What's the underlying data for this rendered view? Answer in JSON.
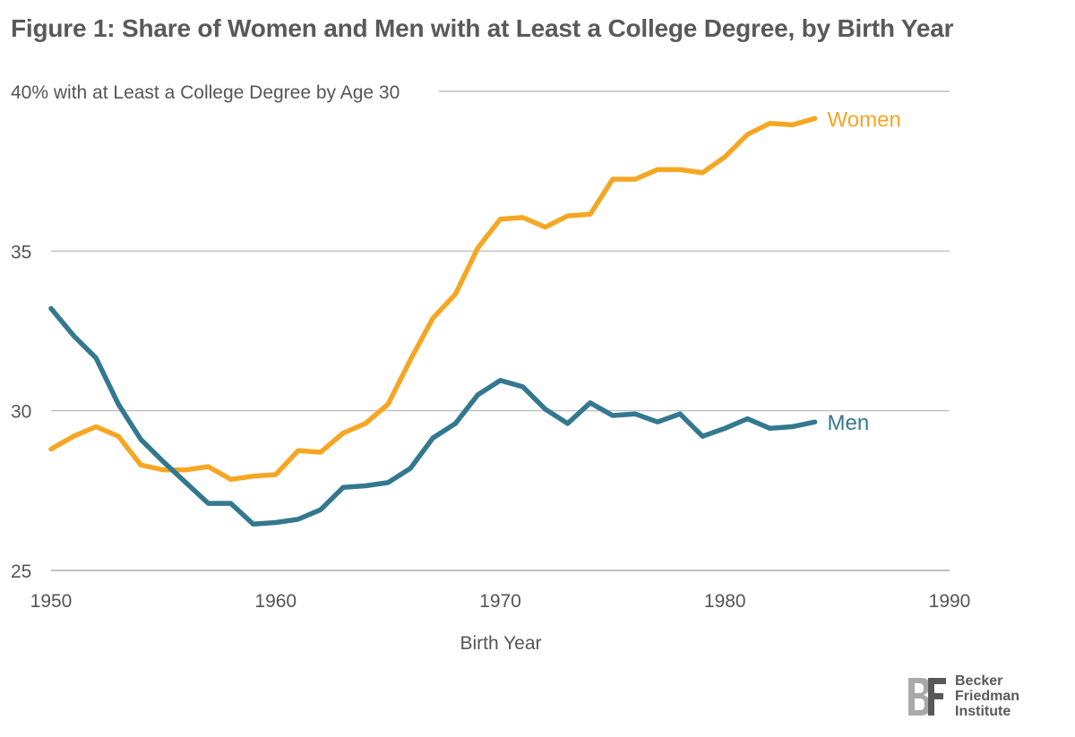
{
  "title": "Figure 1: Share of Women and Men with at Least a College Degree, by Birth Year",
  "logo": {
    "line1": "Becker",
    "line2": "Friedman",
    "line3": "Institute",
    "mark": "BF"
  },
  "chart_data": {
    "type": "line",
    "title": "Figure 1: Share of Women and Men with at Least a College Degree, by Birth Year",
    "xlabel": "Birth Year",
    "ylabel": "40% with at Least a College Degree by Age 30",
    "xlim": [
      1950,
      1990
    ],
    "ylim": [
      25,
      40
    ],
    "x_ticks": [
      1950,
      1960,
      1970,
      1980,
      1990
    ],
    "y_ticks": [
      25,
      30,
      35,
      40
    ],
    "y_tick_labels": [
      "25",
      "30",
      "35",
      ""
    ],
    "grid": "horizontal",
    "x": [
      1950,
      1951,
      1952,
      1953,
      1954,
      1955,
      1956,
      1957,
      1958,
      1959,
      1960,
      1961,
      1962,
      1963,
      1964,
      1965,
      1966,
      1967,
      1968,
      1969,
      1970,
      1971,
      1972,
      1973,
      1974,
      1975,
      1976,
      1977,
      1978,
      1979,
      1980,
      1981,
      1982,
      1983,
      1984
    ],
    "series": [
      {
        "name": "Women",
        "color": "#f5a623",
        "values": [
          28.8,
          29.2,
          29.5,
          29.2,
          28.3,
          28.15,
          28.15,
          28.25,
          27.85,
          27.95,
          28.0,
          28.75,
          28.7,
          29.3,
          29.6,
          30.2,
          31.6,
          32.9,
          33.65,
          35.1,
          36.0,
          36.05,
          35.75,
          36.1,
          36.15,
          37.25,
          37.25,
          37.55,
          37.55,
          37.45,
          37.95,
          38.65,
          39.0,
          38.95,
          39.15
        ]
      },
      {
        "name": "Men",
        "color": "#33788f",
        "values": [
          33.2,
          32.35,
          31.65,
          30.2,
          29.1,
          28.4,
          27.75,
          27.1,
          27.1,
          26.45,
          26.5,
          26.6,
          26.9,
          27.6,
          27.65,
          27.75,
          28.2,
          29.15,
          29.6,
          30.5,
          30.95,
          30.75,
          30.05,
          29.6,
          30.25,
          29.85,
          29.9,
          29.65,
          29.9,
          29.2,
          29.45,
          29.75,
          29.45,
          29.5,
          29.65
        ]
      }
    ]
  }
}
